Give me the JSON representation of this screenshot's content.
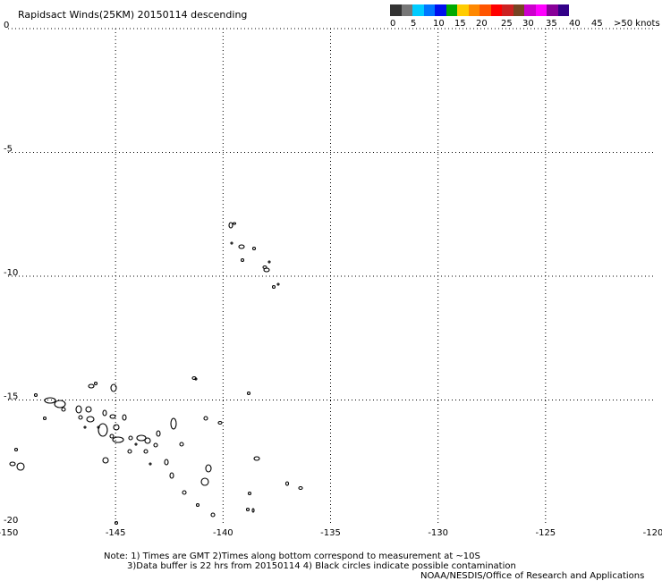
{
  "title": "Rapidsact Winds(25KM) 20150114 descending",
  "colorbar": {
    "colors": [
      "#333333",
      "#777777",
      "#00ccff",
      "#0077ff",
      "#0011ee",
      "#00aa00",
      "#ffcc00",
      "#ff8800",
      "#ff5500",
      "#ff0000",
      "#cc2222",
      "#774422",
      "#cc00cc",
      "#ff00ff",
      "#880099",
      "#330088"
    ],
    "labels": [
      "0",
      "5",
      "10",
      "15",
      "20",
      "25",
      "30",
      "35",
      "40",
      "45",
      ">50 knots"
    ]
  },
  "map": {
    "x_ticks": [
      "-150",
      "-145",
      "-140",
      "-135",
      "-130",
      "-125",
      "-120"
    ],
    "y_ticks": [
      "0",
      "-5",
      "-10",
      "-15",
      "-20"
    ],
    "lon_range": [
      -150,
      -120
    ],
    "lat_range": [
      0,
      -20
    ],
    "grid": true
  },
  "note_line1": "Note: 1) Times are GMT 2)Times along bottom correspond to measurement at ~10S",
  "note_line2": "3)Data buffer is 22 hrs from 20150114 4) Black circles indicate possible contamination",
  "credit": "NOAA/NESDIS/Office of Research and Applications"
}
